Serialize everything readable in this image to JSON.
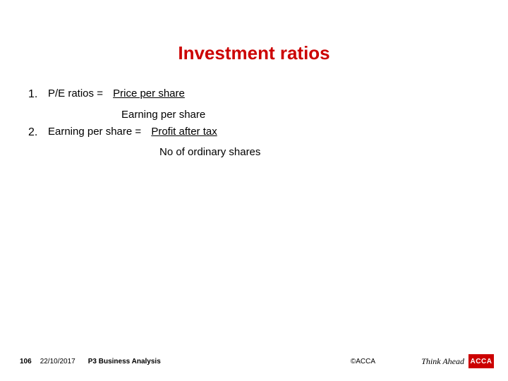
{
  "title": "Investment ratios",
  "title_color": "#cc0000",
  "items": [
    {
      "number": "1.",
      "label": "P/E ratios = ",
      "numerator": " Price per share",
      "denominator": "Earning per share"
    },
    {
      "number": "2.",
      "label": "Earning per share =    ",
      "numerator": " Profit after tax",
      "denominator": "No of ordinary shares"
    }
  ],
  "footer": {
    "page": "106",
    "date": "22/10/2017",
    "course": "P3  Business Analysis",
    "copyright": "©ACCA",
    "tagline": "Think Ahead",
    "logo_text": "ACCA",
    "logo_bg": "#cc0000",
    "logo_fg": "#ffffff"
  },
  "body_fontsize": 15,
  "title_fontsize": 26,
  "background_color": "#ffffff"
}
